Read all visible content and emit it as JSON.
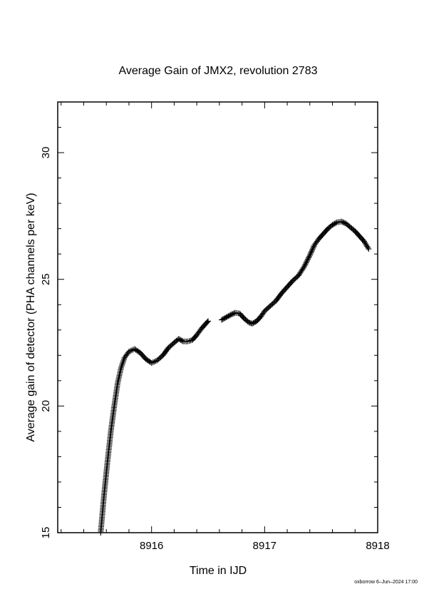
{
  "chart_data": {
    "type": "scatter",
    "title": "Average Gain of JMX2, revolution 2783",
    "xlabel": "Time in IJD",
    "ylabel": "Average gain of detector (PHA channels per keV)",
    "xlim": [
      8915.17,
      8918.0
    ],
    "ylim": [
      15,
      32
    ],
    "xticks": [
      {
        "value": 8916,
        "label": "8916"
      },
      {
        "value": 8917,
        "label": "8917"
      },
      {
        "value": 8918,
        "label": "8918"
      }
    ],
    "yticks": [
      {
        "value": 15,
        "label": "15"
      },
      {
        "value": 20,
        "label": "20"
      },
      {
        "value": 25,
        "label": "25"
      },
      {
        "value": 30,
        "label": "30"
      }
    ],
    "marker": "plus",
    "grid": false,
    "series": [
      {
        "points": [
          [
            8915.55,
            15.0
          ],
          [
            8915.58,
            16.5
          ],
          [
            8915.61,
            17.8
          ],
          [
            8915.64,
            19.0
          ],
          [
            8915.67,
            20.0
          ],
          [
            8915.7,
            20.9
          ],
          [
            8915.73,
            21.5
          ],
          [
            8915.76,
            21.9
          ],
          [
            8915.8,
            22.15
          ],
          [
            8915.85,
            22.25
          ],
          [
            8915.9,
            22.1
          ],
          [
            8915.95,
            21.85
          ],
          [
            8916.0,
            21.7
          ],
          [
            8916.05,
            21.8
          ],
          [
            8916.1,
            22.0
          ],
          [
            8916.15,
            22.3
          ],
          [
            8916.2,
            22.5
          ],
          [
            8916.24,
            22.65
          ],
          [
            8916.28,
            22.55
          ],
          [
            8916.32,
            22.55
          ],
          [
            8916.36,
            22.6
          ],
          [
            8916.4,
            22.8
          ],
          [
            8916.44,
            23.05
          ],
          [
            8916.48,
            23.25
          ],
          [
            8916.5,
            23.35
          ],
          [
            8916.62,
            23.4
          ],
          [
            8916.66,
            23.5
          ],
          [
            8916.7,
            23.6
          ],
          [
            8916.74,
            23.68
          ],
          [
            8916.78,
            23.65
          ],
          [
            8916.82,
            23.45
          ],
          [
            8916.86,
            23.3
          ],
          [
            8916.89,
            23.25
          ],
          [
            8916.93,
            23.35
          ],
          [
            8916.97,
            23.55
          ],
          [
            8917.0,
            23.75
          ],
          [
            8917.05,
            23.95
          ],
          [
            8917.1,
            24.15
          ],
          [
            8917.15,
            24.45
          ],
          [
            8917.2,
            24.7
          ],
          [
            8917.25,
            24.95
          ],
          [
            8917.3,
            25.15
          ],
          [
            8917.35,
            25.5
          ],
          [
            8917.4,
            25.95
          ],
          [
            8917.44,
            26.35
          ],
          [
            8917.48,
            26.6
          ],
          [
            8917.52,
            26.8
          ],
          [
            8917.56,
            27.0
          ],
          [
            8917.6,
            27.15
          ],
          [
            8917.64,
            27.25
          ],
          [
            8917.68,
            27.28
          ],
          [
            8917.72,
            27.2
          ],
          [
            8917.76,
            27.05
          ],
          [
            8917.8,
            26.9
          ],
          [
            8917.84,
            26.7
          ],
          [
            8917.88,
            26.5
          ],
          [
            8917.92,
            26.2
          ]
        ]
      }
    ]
  },
  "footer": {
    "credit": "oxborrow  6–Jun–2024 17:00"
  }
}
